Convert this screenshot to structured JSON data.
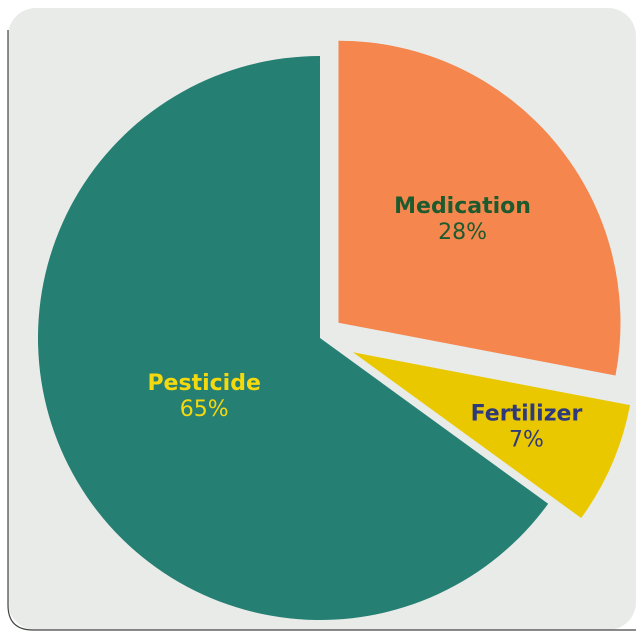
{
  "chart_data": {
    "type": "pie",
    "categories": [
      "Medication",
      "Fertilizer",
      "Pesticide"
    ],
    "values": [
      28,
      7,
      65
    ],
    "value_labels": [
      "28%",
      "7%",
      "65%"
    ],
    "colors": [
      "#f4864e",
      "#eac800",
      "#257f72"
    ],
    "label_colors": [
      "#1d5a2e",
      "#2e3a7a",
      "#f5d90f"
    ]
  }
}
